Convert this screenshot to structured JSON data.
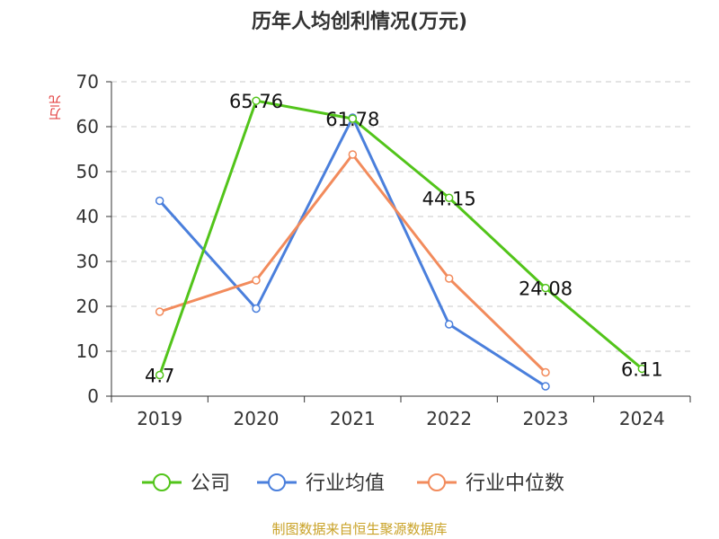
{
  "chart_data": {
    "type": "line",
    "title": "历年人均创利情况(万元)",
    "ylabel": "万元",
    "xlabel": "",
    "categories": [
      "2019",
      "2020",
      "2021",
      "2022",
      "2023",
      "2024"
    ],
    "ylim": [
      0,
      70
    ],
    "yticks": [
      0,
      10,
      20,
      30,
      40,
      50,
      60,
      70
    ],
    "grid": true,
    "legend_position": "bottom",
    "series": [
      {
        "name": "公司",
        "color": "#52c41a",
        "values": [
          4.7,
          65.76,
          61.78,
          44.15,
          24.08,
          6.11
        ],
        "labels": [
          "4.7",
          "65.76",
          "61.78",
          "44.15",
          "24.08",
          "6.11"
        ]
      },
      {
        "name": "行业均值",
        "color": "#4a7fdc",
        "values": [
          43.5,
          19.5,
          62.0,
          16.0,
          2.2,
          null
        ]
      },
      {
        "name": "行业中位数",
        "color": "#f28b5c",
        "values": [
          18.8,
          25.8,
          53.8,
          26.2,
          5.3,
          null
        ]
      }
    ]
  },
  "footer": "制图数据来自恒生聚源数据库"
}
